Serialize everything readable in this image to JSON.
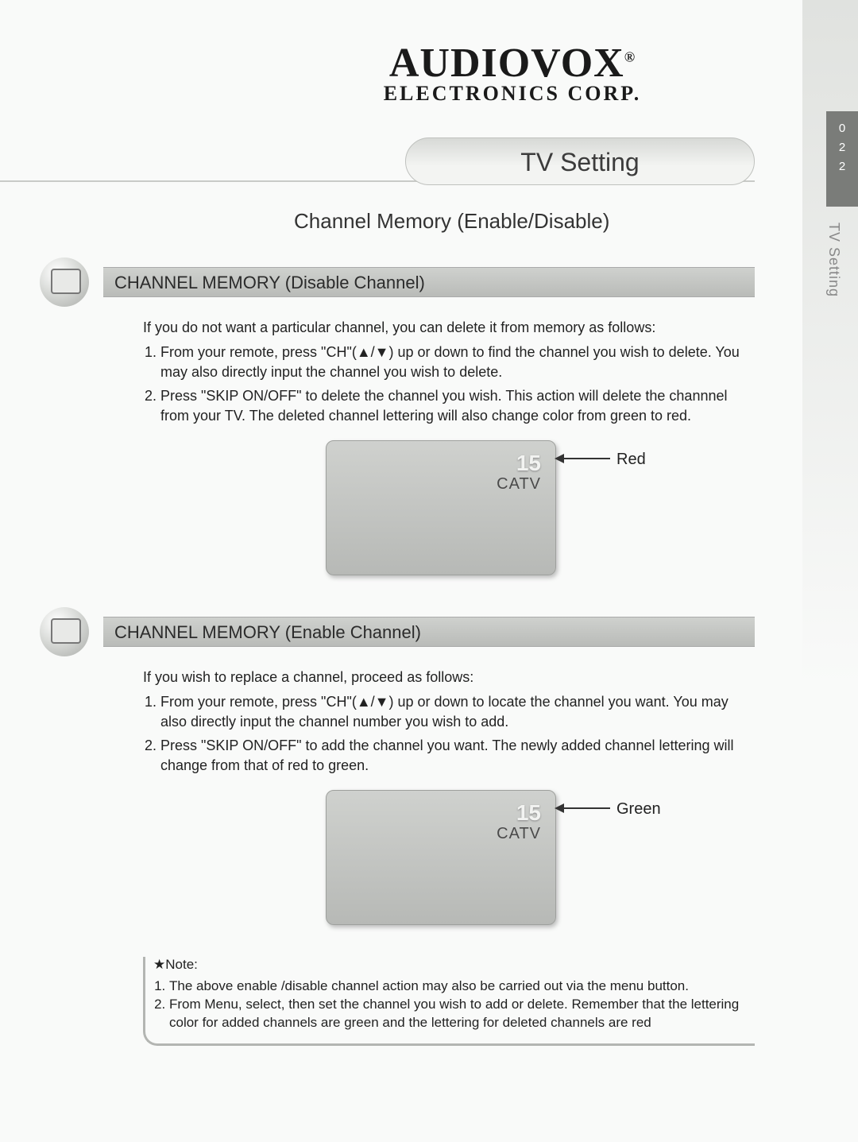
{
  "brand": {
    "name": "AUDIOVOX",
    "reg": "®",
    "sub": "ELECTRONICS CORP."
  },
  "sideTab": {
    "nums": [
      "0",
      "2",
      "2"
    ],
    "label": "TV Setting",
    "bg_dark": "#7a7c79",
    "label_color": "#888888"
  },
  "pill": {
    "title": "TV Setting",
    "bg_top": "#d7d9d6",
    "bg_bottom": "#f3f4f2"
  },
  "subtitle": "Channel Memory (Enable/Disable)",
  "sections": [
    {
      "title": "CHANNEL MEMORY (Disable Channel)",
      "intro": "If you do not want a particular channel, you can delete it from memory as follows:",
      "steps": [
        "From your remote, press \"CH\"(▲/▼) up or down to find the channel you wish to delete.  You may also directly input the channel you wish to delete.",
        "Press \"SKIP ON/OFF\" to delete the channel you wish. This action will delete the channnel from your TV. The deleted channel lettering will also change color from green to red."
      ],
      "tv": {
        "channel": "15",
        "source": "CATV",
        "label": "Red",
        "label_color": "#222222"
      }
    },
    {
      "title": "CHANNEL MEMORY (Enable Channel)",
      "intro": "If you wish to replace a channel, proceed as follows:",
      "steps": [
        "From your remote, press \"CH\"(▲/▼) up or down to locate the channel you want. You may also directly input the channel number you wish to add.",
        "Press \"SKIP ON/OFF\" to add the channel you want. The newly added channel lettering will change from that of red to green."
      ],
      "tv": {
        "channel": "15",
        "source": "CATV",
        "label": "Green",
        "label_color": "#222222"
      }
    }
  ],
  "note": {
    "head": "★Note:",
    "items": [
      "The above enable /disable channel action may also be carried out via the menu button.",
      "From Menu, select, then set the channel you wish to add or delete. Remember that the lettering color for added channels are green and the lettering for deleted channels are red"
    ]
  },
  "colors": {
    "page_bg": "#f9faf9",
    "section_bar_top": "#cfd1ce",
    "section_bar_bottom": "#b9bbb8",
    "tv_bg_top": "#cfd1ce",
    "tv_bg_bottom": "#b7b9b6",
    "text": "#2a2a2a"
  }
}
